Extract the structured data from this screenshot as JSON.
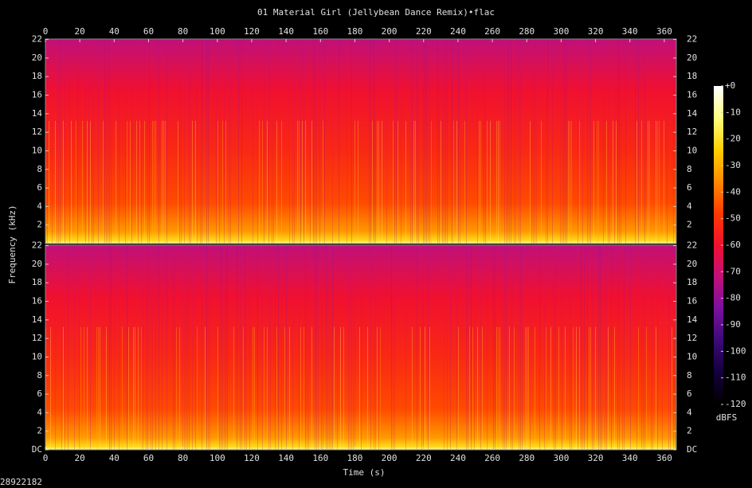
{
  "chart_data": {
    "type": "spectrogram",
    "title": "01 Material Girl (Jellybean Dance Remix)•flac",
    "x_label": "Time (s)",
    "y_label": "Frequency (kHz)",
    "xlim": [
      0,
      367
    ],
    "xticks": [
      0,
      20,
      40,
      60,
      80,
      100,
      120,
      140,
      160,
      180,
      200,
      220,
      240,
      260,
      280,
      300,
      320,
      340,
      360
    ],
    "panels": [
      {
        "ylim": [
          0,
          22.05
        ],
        "yticks": [
          2,
          4,
          6,
          8,
          10,
          12,
          14,
          16,
          18,
          20,
          22
        ]
      },
      {
        "ylim": [
          0,
          22.05
        ],
        "yticks": [
          {
            "value": 0,
            "label": "DC"
          },
          2,
          4,
          6,
          8,
          10,
          12,
          14,
          16,
          18,
          20,
          22
        ]
      }
    ],
    "colorbar": {
      "label": "dBFS",
      "lim": [
        -120,
        0
      ],
      "ticks": [
        {
          "value": 0,
          "label": "+0"
        },
        -10,
        -20,
        -30,
        -40,
        -50,
        -60,
        -70,
        -80,
        -90,
        -100,
        -110,
        -120
      ]
    },
    "colormap": [
      "#000000",
      "#14003c",
      "#3c0a78",
      "#7a10a0",
      "#c0107a",
      "#f01030",
      "#ff3a00",
      "#ff8a00",
      "#ffd000",
      "#ffff80",
      "#ffffff"
    ]
  },
  "footer": "28922182"
}
